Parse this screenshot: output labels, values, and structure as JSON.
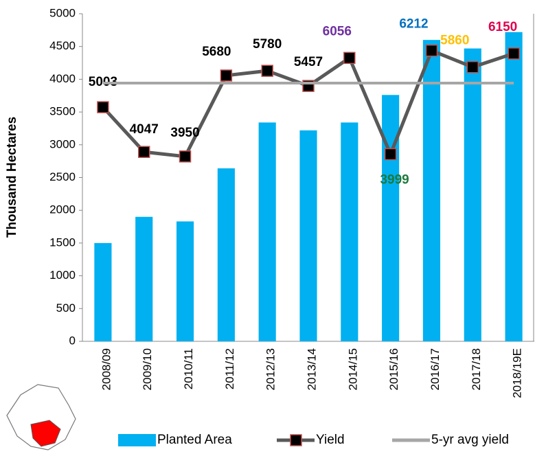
{
  "chart_data": {
    "type": "bar-line",
    "y_label": "Thousand Hectares",
    "categories": [
      "2008/09",
      "2009/10",
      "2010/11",
      "2011/12",
      "2012/13",
      "2013/14",
      "2014/15",
      "2015/16",
      "2016/17",
      "2017/18",
      "2018/19E"
    ],
    "series": [
      {
        "name": "Planted Area",
        "type": "bar",
        "color": "#00b0f0",
        "values": [
          1500,
          1900,
          1830,
          2640,
          3340,
          3220,
          3340,
          3760,
          4600,
          4470,
          4720
        ]
      },
      {
        "name": "Yield",
        "type": "line",
        "axis": "y2",
        "color": "#595959",
        "marker_color": "#000000",
        "marker_edge": "#c0504d",
        "values": [
          5003,
          4047,
          3950,
          5680,
          5780,
          5457,
          6056,
          3999,
          6212,
          5860,
          6150
        ],
        "label_colors": [
          "#000000",
          "#000000",
          "#000000",
          "#000000",
          "#000000",
          "#000000",
          "#7030a0",
          "#1e7a3c",
          "#0070c0",
          "#ffc000",
          "#e0004d"
        ]
      },
      {
        "name": "5-yr avg yield",
        "type": "line",
        "axis": "y2",
        "color": "#a6a6a6",
        "values": [
          5517,
          5517,
          5517,
          5517,
          5517,
          5517,
          5517,
          5517,
          5517,
          5517,
          5517
        ]
      }
    ],
    "ylim": [
      0,
      5000
    ],
    "yticks": [
      0,
      500,
      1000,
      1500,
      2000,
      2500,
      3000,
      3500,
      4000,
      4500,
      5000
    ],
    "y2lim": [
      0,
      7000
    ]
  }
}
